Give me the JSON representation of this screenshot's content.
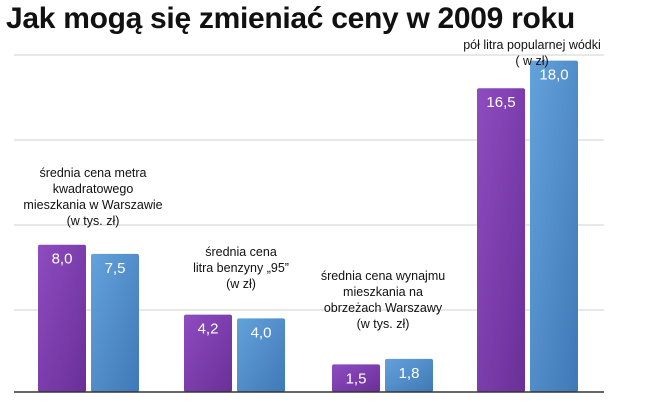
{
  "title": "Jak mogą się zmieniać ceny w 2009 roku",
  "colors": {
    "series_2008": "#7a3ba8",
    "series_2009": "#4f8ac8",
    "grid": "#d0d0d0",
    "axis": "#333333"
  },
  "chart_data": {
    "type": "bar",
    "title": "Jak mogą się zmieniać ceny w 2009 roku",
    "grid": true,
    "legend": "none",
    "categories": [
      "średnia cena metra kwadratowego mieszkania w Warszawie (w tys. zł)",
      "średnia cena litra benzyny „95” (w zł)",
      "średnia cena wynajmu mieszkania na obrzeżach Warszawy (w tys. zł)",
      "pół litra popularnej wódki ( w zł)"
    ],
    "category_label_lines": [
      [
        "średnia cena metra",
        "kwadratowego",
        "mieszkania w Warszawie",
        "(w tys. zł)"
      ],
      [
        "średnia cena",
        "litra benzyny „95”",
        "(w zł)"
      ],
      [
        "średnia cena wynajmu",
        "mieszkania na",
        "obrzeżach Warszawy",
        "(w tys. zł)"
      ],
      [
        "pół litra popularnej wódki",
        "( w zł)"
      ]
    ],
    "series": [
      {
        "values": [
          8.0,
          4.2,
          1.5,
          16.5
        ],
        "labels": [
          "8,0",
          "4,2",
          "1,5",
          "16,5"
        ]
      },
      {
        "values": [
          7.5,
          4.0,
          1.8,
          18.0
        ],
        "labels": [
          "7,5",
          "4,0",
          "1,8",
          "18,0"
        ]
      }
    ],
    "ylim": [
      0,
      18.9
    ]
  }
}
